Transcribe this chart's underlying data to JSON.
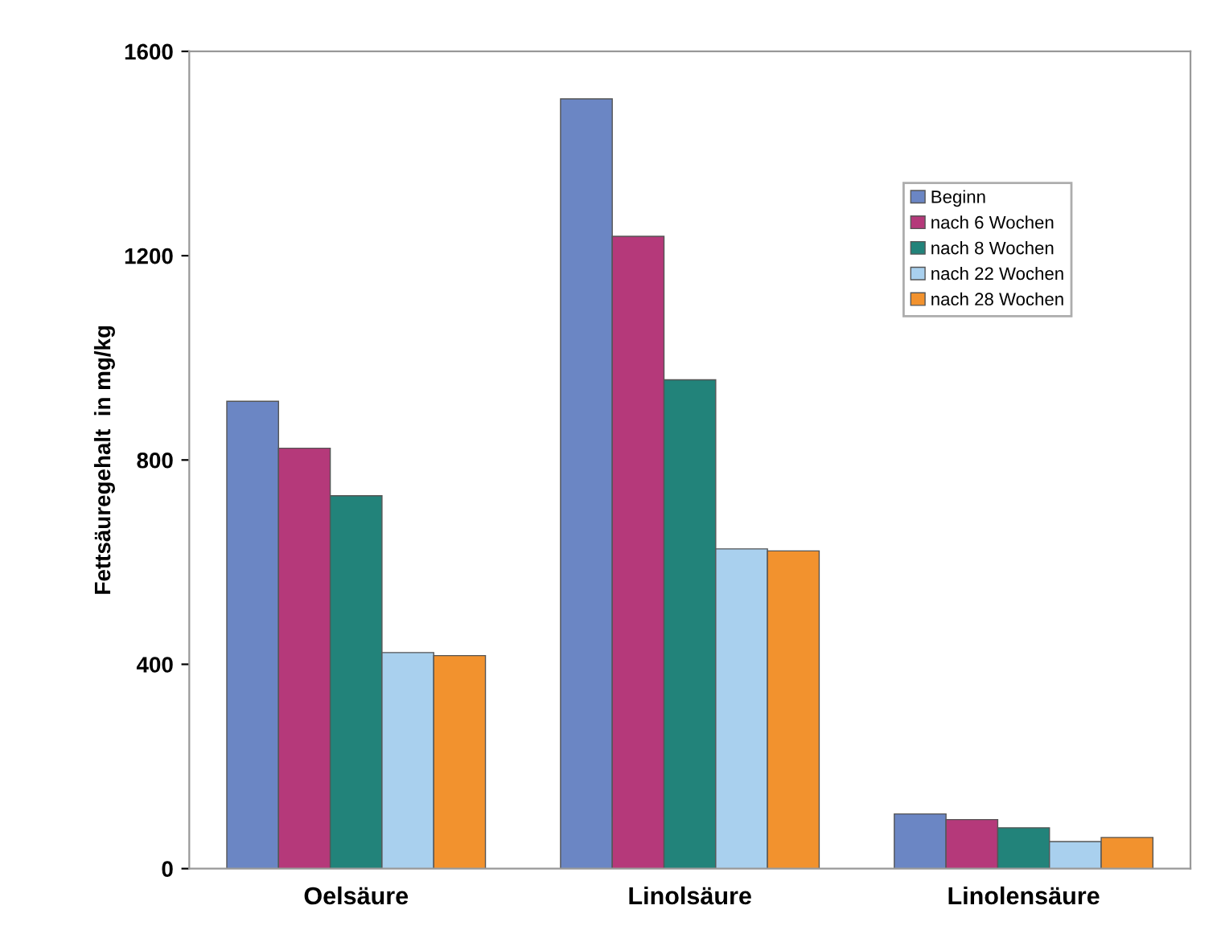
{
  "chart_data": {
    "type": "bar",
    "ylabel": "Fettsäuregehalt  in mg/kg",
    "categories": [
      "Oelsäure",
      "Linolsäure",
      "Linolensäure"
    ],
    "series": [
      {
        "name": "Beginn",
        "color": "#6b86c4",
        "values": [
          915,
          1507,
          107
        ]
      },
      {
        "name": "nach 6 Wochen",
        "color": "#b5397a",
        "values": [
          823,
          1238,
          96
        ]
      },
      {
        "name": "nach 8 Wochen",
        "color": "#22837a",
        "values": [
          730,
          957,
          80
        ]
      },
      {
        "name": "nach 22 Wochen",
        "color": "#a9d0ee",
        "values": [
          423,
          626,
          53
        ]
      },
      {
        "name": "nach 28 Wochen",
        "color": "#f2922e",
        "values": [
          417,
          622,
          61
        ]
      }
    ],
    "ylim": [
      0,
      1600
    ],
    "yticks": [
      0,
      400,
      800,
      1200,
      1600
    ],
    "grid": false,
    "legend": "top right"
  }
}
